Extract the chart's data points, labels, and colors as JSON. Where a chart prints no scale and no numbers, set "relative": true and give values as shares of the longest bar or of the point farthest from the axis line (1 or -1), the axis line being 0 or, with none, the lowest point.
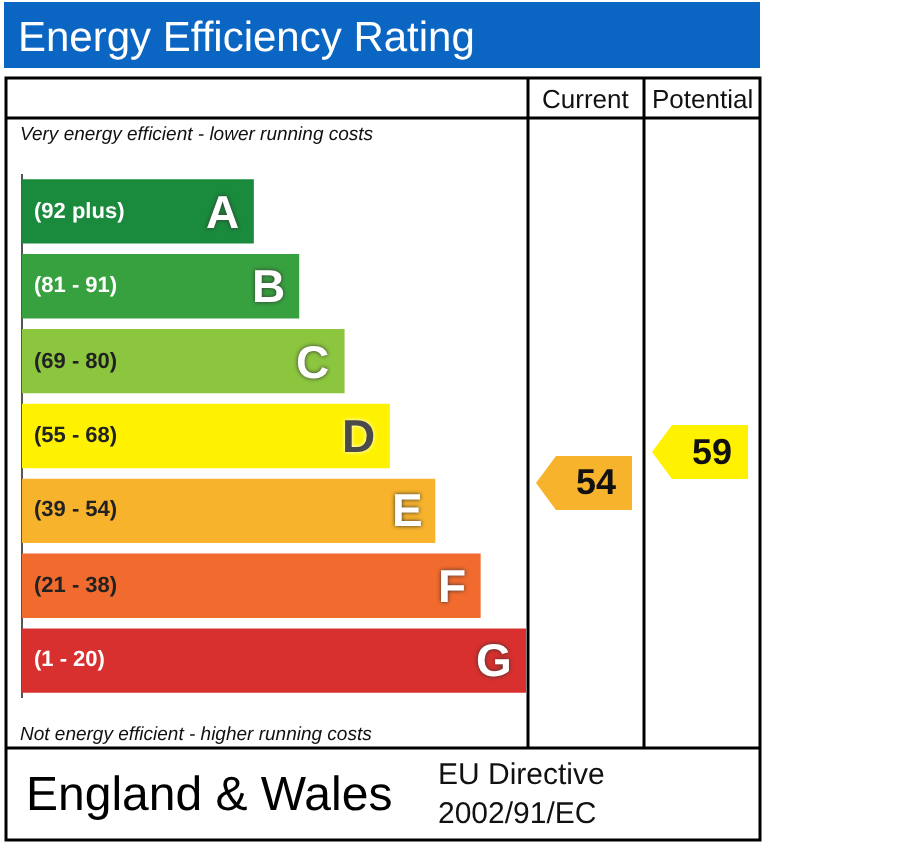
{
  "chart_data": {
    "type": "bar",
    "orientation": "horizontal",
    "relative": true,
    "title": "Energy Efficiency Rating",
    "categories": [
      "A",
      "B",
      "C",
      "D",
      "E",
      "F",
      "G"
    ],
    "values": [
      0.46,
      0.55,
      0.64,
      0.73,
      0.82,
      0.91,
      1
    ],
    "colors": [
      "#1a8a3c",
      "#37a13f",
      "#8cc63f",
      "#fff200",
      "#f7b32b",
      "#f26b2e",
      "#d8302e"
    ],
    "tick_labels": false,
    "annotations": [
      "Very energy efficient - lower running costs",
      "Not energy efficient - higher running costs",
      "Current",
      "Potential",
      "54",
      "59",
      "(92 plus)",
      "(81 - 91)",
      "(69 - 80)",
      "(55 - 68)",
      "(39 - 54)",
      "(21 - 38)",
      "(1 - 20)",
      "England & Wales",
      "EU Directive\n2002/91/EC"
    ]
  }
}
